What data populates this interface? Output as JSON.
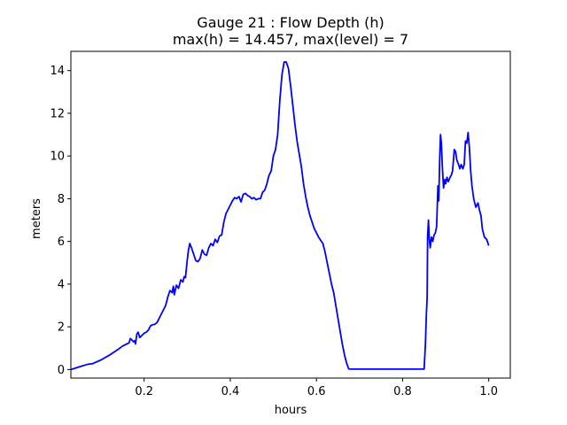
{
  "chart_data": {
    "type": "line",
    "title_line1": "Gauge 21 : Flow Depth (h)",
    "title_line2": "max(h) =  14.457,    max(level) = 7",
    "xlabel": "hours",
    "ylabel": "meters",
    "xlim": [
      0.03,
      1.05
    ],
    "ylim": [
      -0.4,
      14.9
    ],
    "x_ticks": [
      {
        "value": 0.2,
        "label": "0.2"
      },
      {
        "value": 0.4,
        "label": "0.4"
      },
      {
        "value": 0.6,
        "label": "0.6"
      },
      {
        "value": 0.8,
        "label": "0.8"
      },
      {
        "value": 1.0,
        "label": "1.0"
      }
    ],
    "y_ticks": [
      {
        "value": 0,
        "label": "0"
      },
      {
        "value": 2,
        "label": "2"
      },
      {
        "value": 4,
        "label": "4"
      },
      {
        "value": 6,
        "label": "6"
      },
      {
        "value": 8,
        "label": "8"
      },
      {
        "value": 10,
        "label": "10"
      },
      {
        "value": 12,
        "label": "12"
      },
      {
        "value": 14,
        "label": "14"
      }
    ],
    "series": [
      {
        "color": "#0000ff",
        "points": [
          [
            0.03,
            0.0
          ],
          [
            0.05,
            0.13
          ],
          [
            0.07,
            0.25
          ],
          [
            0.08,
            0.27
          ],
          [
            0.1,
            0.45
          ],
          [
            0.12,
            0.68
          ],
          [
            0.14,
            0.95
          ],
          [
            0.15,
            1.1
          ],
          [
            0.16,
            1.2
          ],
          [
            0.165,
            1.25
          ],
          [
            0.168,
            1.45
          ],
          [
            0.172,
            1.38
          ],
          [
            0.175,
            1.3
          ],
          [
            0.178,
            1.35
          ],
          [
            0.18,
            1.2
          ],
          [
            0.183,
            1.65
          ],
          [
            0.186,
            1.75
          ],
          [
            0.19,
            1.5
          ],
          [
            0.195,
            1.6
          ],
          [
            0.2,
            1.7
          ],
          [
            0.205,
            1.75
          ],
          [
            0.21,
            1.85
          ],
          [
            0.215,
            2.05
          ],
          [
            0.22,
            2.1
          ],
          [
            0.225,
            2.12
          ],
          [
            0.23,
            2.2
          ],
          [
            0.24,
            2.6
          ],
          [
            0.25,
            3.0
          ],
          [
            0.255,
            3.4
          ],
          [
            0.26,
            3.7
          ],
          [
            0.265,
            3.6
          ],
          [
            0.268,
            3.9
          ],
          [
            0.27,
            3.5
          ],
          [
            0.275,
            3.95
          ],
          [
            0.28,
            3.8
          ],
          [
            0.285,
            4.2
          ],
          [
            0.29,
            4.1
          ],
          [
            0.293,
            4.35
          ],
          [
            0.296,
            4.3
          ],
          [
            0.3,
            5.1
          ],
          [
            0.303,
            5.6
          ],
          [
            0.306,
            5.9
          ],
          [
            0.31,
            5.7
          ],
          [
            0.315,
            5.4
          ],
          [
            0.32,
            5.1
          ],
          [
            0.325,
            5.05
          ],
          [
            0.33,
            5.2
          ],
          [
            0.335,
            5.6
          ],
          [
            0.34,
            5.4
          ],
          [
            0.345,
            5.35
          ],
          [
            0.35,
            5.7
          ],
          [
            0.355,
            5.9
          ],
          [
            0.36,
            5.8
          ],
          [
            0.365,
            6.1
          ],
          [
            0.37,
            5.95
          ],
          [
            0.375,
            6.25
          ],
          [
            0.38,
            6.3
          ],
          [
            0.385,
            6.9
          ],
          [
            0.39,
            7.3
          ],
          [
            0.395,
            7.5
          ],
          [
            0.4,
            7.7
          ],
          [
            0.405,
            7.9
          ],
          [
            0.41,
            8.05
          ],
          [
            0.415,
            8.0
          ],
          [
            0.42,
            8.1
          ],
          [
            0.425,
            7.85
          ],
          [
            0.43,
            8.2
          ],
          [
            0.435,
            8.25
          ],
          [
            0.44,
            8.15
          ],
          [
            0.445,
            8.1
          ],
          [
            0.45,
            8.0
          ],
          [
            0.455,
            8.05
          ],
          [
            0.46,
            7.95
          ],
          [
            0.465,
            8.0
          ],
          [
            0.47,
            8.0
          ],
          [
            0.475,
            8.3
          ],
          [
            0.48,
            8.4
          ],
          [
            0.485,
            8.7
          ],
          [
            0.49,
            9.1
          ],
          [
            0.495,
            9.3
          ],
          [
            0.5,
            10.0
          ],
          [
            0.505,
            10.3
          ],
          [
            0.51,
            11.0
          ],
          [
            0.515,
            12.6
          ],
          [
            0.52,
            13.8
          ],
          [
            0.525,
            14.4
          ],
          [
            0.53,
            14.4
          ],
          [
            0.535,
            14.1
          ],
          [
            0.54,
            13.3
          ],
          [
            0.545,
            12.4
          ],
          [
            0.55,
            11.5
          ],
          [
            0.555,
            10.7
          ],
          [
            0.56,
            10.1
          ],
          [
            0.565,
            9.5
          ],
          [
            0.57,
            8.7
          ],
          [
            0.575,
            8.1
          ],
          [
            0.58,
            7.6
          ],
          [
            0.585,
            7.2
          ],
          [
            0.59,
            6.9
          ],
          [
            0.595,
            6.6
          ],
          [
            0.6,
            6.4
          ],
          [
            0.605,
            6.2
          ],
          [
            0.61,
            6.05
          ],
          [
            0.615,
            5.9
          ],
          [
            0.62,
            5.5
          ],
          [
            0.625,
            5.0
          ],
          [
            0.63,
            4.5
          ],
          [
            0.635,
            4.0
          ],
          [
            0.64,
            3.6
          ],
          [
            0.645,
            3.0
          ],
          [
            0.65,
            2.4
          ],
          [
            0.655,
            1.8
          ],
          [
            0.66,
            1.2
          ],
          [
            0.665,
            0.7
          ],
          [
            0.67,
            0.3
          ],
          [
            0.675,
            0.03
          ],
          [
            0.68,
            0.02
          ],
          [
            0.7,
            0.02
          ],
          [
            0.75,
            0.02
          ],
          [
            0.8,
            0.02
          ],
          [
            0.85,
            0.02
          ],
          [
            0.853,
            1.2
          ],
          [
            0.855,
            2.5
          ],
          [
            0.857,
            3.4
          ],
          [
            0.858,
            6.2
          ],
          [
            0.86,
            7.0
          ],
          [
            0.862,
            6.1
          ],
          [
            0.864,
            5.7
          ],
          [
            0.867,
            6.2
          ],
          [
            0.87,
            6.0
          ],
          [
            0.873,
            6.3
          ],
          [
            0.876,
            6.4
          ],
          [
            0.879,
            6.7
          ],
          [
            0.882,
            8.6
          ],
          [
            0.884,
            7.9
          ],
          [
            0.886,
            9.8
          ],
          [
            0.888,
            11.0
          ],
          [
            0.89,
            10.6
          ],
          [
            0.892,
            9.6
          ],
          [
            0.895,
            8.5
          ],
          [
            0.898,
            8.9
          ],
          [
            0.9,
            8.7
          ],
          [
            0.903,
            9.0
          ],
          [
            0.906,
            8.8
          ],
          [
            0.91,
            9.0
          ],
          [
            0.913,
            9.1
          ],
          [
            0.916,
            9.3
          ],
          [
            0.92,
            10.3
          ],
          [
            0.923,
            10.2
          ],
          [
            0.926,
            9.8
          ],
          [
            0.93,
            9.6
          ],
          [
            0.933,
            9.4
          ],
          [
            0.936,
            9.6
          ],
          [
            0.94,
            9.4
          ],
          [
            0.943,
            9.6
          ],
          [
            0.946,
            10.7
          ],
          [
            0.949,
            10.6
          ],
          [
            0.952,
            11.1
          ],
          [
            0.955,
            10.4
          ],
          [
            0.958,
            9.3
          ],
          [
            0.961,
            8.6
          ],
          [
            0.965,
            8.0
          ],
          [
            0.97,
            7.6
          ],
          [
            0.975,
            7.8
          ],
          [
            0.978,
            7.5
          ],
          [
            0.982,
            7.2
          ],
          [
            0.985,
            6.6
          ],
          [
            0.99,
            6.2
          ],
          [
            0.995,
            6.1
          ],
          [
            1.0,
            5.8
          ]
        ]
      }
    ]
  }
}
